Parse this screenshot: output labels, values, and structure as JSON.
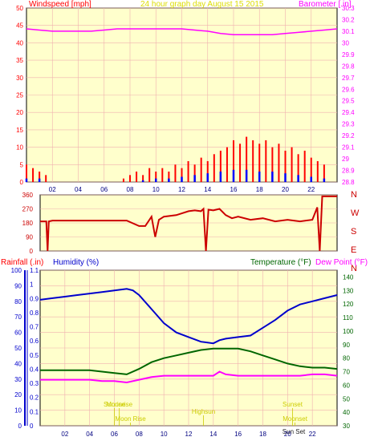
{
  "chart_data": [
    {
      "type": "line",
      "title": "24 hour graph day   August 15 2015",
      "left_axis_label": "Windspeed [mph]",
      "right_axis_label": "Barometer [.in]",
      "x": {
        "ticks": [
          2,
          4,
          6,
          8,
          10,
          12,
          14,
          16,
          18,
          20,
          22
        ],
        "tick_labels": [
          "02",
          "04",
          "06",
          "08",
          "10",
          "12",
          "14",
          "16",
          "18",
          "20",
          "22"
        ],
        "range": [
          0,
          24
        ]
      },
      "ylim_left": [
        0,
        50
      ],
      "yticks_left": [
        0,
        5,
        10,
        15,
        20,
        25,
        30,
        35,
        40,
        45,
        50
      ],
      "ylim_right": [
        28.8,
        30.3
      ],
      "yticks_right": [
        28.8,
        28.9,
        29,
        29.1,
        29.2,
        29.3,
        29.4,
        29.5,
        29.6,
        29.7,
        29.8,
        29.9,
        30,
        30.1,
        30.2,
        30.3
      ],
      "grid": true,
      "series": [
        {
          "name": "Barometer",
          "color": "#ff00ff",
          "axis": "right",
          "x": [
            0,
            1,
            2,
            3,
            4,
            5,
            6,
            7,
            8,
            9,
            10,
            11,
            12,
            13,
            14,
            15,
            16,
            17,
            18,
            19,
            20,
            21,
            22,
            23,
            24
          ],
          "values": [
            30.12,
            30.11,
            30.1,
            30.1,
            30.1,
            30.1,
            30.11,
            30.12,
            30.12,
            30.12,
            30.12,
            30.12,
            30.12,
            30.11,
            30.1,
            30.08,
            30.07,
            30.07,
            30.07,
            30.07,
            30.08,
            30.09,
            30.1,
            30.11,
            30.12
          ]
        },
        {
          "name": "Wind gust",
          "color": "#ff0000",
          "axis": "left",
          "x": [
            0,
            0.5,
            1,
            1.5,
            2,
            3,
            4,
            5,
            6,
            7,
            7.5,
            8,
            8.5,
            9,
            9.5,
            10,
            10.5,
            11,
            11.5,
            12,
            12.5,
            13,
            13.5,
            14,
            14.5,
            15,
            15.5,
            16,
            16.5,
            17,
            17.5,
            18,
            18.5,
            19,
            19.5,
            20,
            20.5,
            21,
            21.5,
            22,
            22.5,
            23
          ],
          "values": [
            5,
            4,
            3,
            2,
            0,
            0,
            0,
            0,
            0,
            0,
            1,
            2,
            3,
            2,
            4,
            3,
            4,
            3,
            5,
            4,
            6,
            5,
            7,
            6,
            8,
            9,
            10,
            12,
            11,
            13,
            12,
            11,
            12,
            10,
            11,
            9,
            10,
            8,
            9,
            7,
            6,
            5
          ]
        },
        {
          "name": "Wind average",
          "color": "#0000ff",
          "axis": "left",
          "x": [
            0,
            1,
            2,
            6,
            8,
            9,
            10,
            11,
            12,
            13,
            14,
            15,
            16,
            17,
            18,
            19,
            20,
            21,
            22,
            23
          ],
          "values": [
            1,
            1,
            0,
            0,
            0,
            0.5,
            1,
            1,
            1.5,
            2,
            2.5,
            3,
            3.5,
            3.5,
            3,
            3,
            2.5,
            2,
            1.5,
            1
          ]
        }
      ]
    },
    {
      "type": "line",
      "title": "Wind direction",
      "right_labels": [
        "N",
        "W",
        "S",
        "E",
        "N"
      ],
      "ylim": [
        0,
        360
      ],
      "yticks": [
        0,
        90,
        180,
        270,
        360
      ],
      "x_range": [
        0,
        24
      ],
      "series": [
        {
          "name": "Wind direction",
          "color": "#cc0000",
          "x": [
            0,
            0.3,
            0.5,
            0.6,
            0.7,
            1,
            2,
            3,
            4,
            5,
            6,
            7,
            8,
            8.5,
            9,
            9.3,
            9.6,
            10,
            11,
            12,
            12.5,
            13,
            13.2,
            13.4,
            13.6,
            14,
            14.5,
            15,
            15.5,
            16,
            17,
            18,
            19,
            20,
            21,
            22,
            22.4,
            22.6,
            22.8,
            23,
            23.5,
            24
          ],
          "values": [
            190,
            190,
            190,
            0,
            190,
            195,
            195,
            195,
            195,
            195,
            195,
            195,
            160,
            160,
            220,
            90,
            200,
            220,
            230,
            255,
            260,
            255,
            270,
            0,
            265,
            260,
            270,
            230,
            210,
            220,
            200,
            210,
            190,
            200,
            190,
            200,
            280,
            0,
            350,
            350,
            350,
            350
          ]
        }
      ]
    },
    {
      "type": "line",
      "labels": {
        "rainfall": "Rainfall (.in)",
        "humidity": "Humidity (%)",
        "temperature": "Temperature (°F)",
        "dew_point": "Dew Point (°F)"
      },
      "x": {
        "ticks": [
          2,
          4,
          6,
          8,
          10,
          12,
          14,
          16,
          18,
          20,
          22
        ],
        "tick_labels": [
          "02",
          "04",
          "06",
          "08",
          "10",
          "12",
          "14",
          "16",
          "18",
          "20",
          "22"
        ],
        "range": [
          0,
          24
        ]
      },
      "ylim_humidity": [
        0,
        100
      ],
      "yticks_humidity": [
        0,
        10,
        20,
        30,
        40,
        50,
        60,
        70,
        80,
        90,
        100
      ],
      "ylim_rain": [
        0,
        1.1
      ],
      "yticks_rain": [
        0,
        0.1,
        0.2,
        0.3,
        0.4,
        0.5,
        0.6,
        0.7,
        0.8,
        0.9,
        1,
        1.1
      ],
      "ylim_temp": [
        30,
        145
      ],
      "yticks_temp": [
        30,
        40,
        50,
        60,
        70,
        80,
        90,
        100,
        110,
        120,
        130,
        140
      ],
      "grid": true,
      "series": [
        {
          "name": "Humidity",
          "color": "#0000cc",
          "axis": "humidity",
          "x": [
            0,
            1,
            2,
            3,
            4,
            5,
            6,
            7,
            7.5,
            8,
            9,
            10,
            11,
            12,
            13,
            14,
            14.5,
            15,
            16,
            17,
            18,
            19,
            20,
            21,
            22,
            23,
            24
          ],
          "values": [
            81,
            82,
            83,
            84,
            85,
            86,
            87,
            88,
            87,
            84,
            75,
            66,
            60,
            57,
            54,
            53,
            55,
            56,
            57,
            58,
            63,
            68,
            74,
            78,
            80,
            82,
            84
          ]
        },
        {
          "name": "Temperature",
          "color": "#006600",
          "axis": "temp",
          "x": [
            0,
            2,
            4,
            5,
            6,
            7,
            8,
            9,
            10,
            11,
            12,
            13,
            14,
            15,
            16,
            17,
            18,
            19,
            20,
            21,
            22,
            23,
            24
          ],
          "values": [
            71,
            71,
            71,
            70,
            69,
            68,
            72,
            77,
            80,
            82,
            84,
            86,
            87,
            87,
            87,
            85,
            82,
            79,
            76,
            74,
            73,
            73,
            72
          ]
        },
        {
          "name": "Dew Point",
          "color": "#ff00ff",
          "axis": "temp",
          "x": [
            0,
            2,
            4,
            5,
            6,
            7,
            8,
            9,
            10,
            11,
            12,
            13,
            14,
            14.5,
            15,
            16,
            17,
            18,
            19,
            20,
            21,
            22,
            23,
            24
          ],
          "values": [
            64,
            64,
            64,
            63,
            63,
            62,
            64,
            66,
            67,
            67,
            67,
            67,
            67,
            70,
            68,
            67,
            67,
            67,
            67,
            67,
            67,
            68,
            68,
            67
          ]
        }
      ],
      "annotations": [
        {
          "text": "Sunrise",
          "hour": 6,
          "row": "upper",
          "color": "#cccc00"
        },
        {
          "text": "Moonrise",
          "hour": 6.4,
          "row": "upper",
          "color": "#cccc00"
        },
        {
          "text": "Moon Rise",
          "hour": 7.3,
          "row": "lower",
          "color": "#cccc00"
        },
        {
          "text": "Highsun",
          "hour": 13.2,
          "row": "middle",
          "color": "#cccc00"
        },
        {
          "text": "Sunset",
          "hour": 20.4,
          "row": "upper",
          "color": "#cccc00"
        },
        {
          "text": "Moonset",
          "hour": 20.6,
          "row": "lower",
          "color": "#cccc00"
        },
        {
          "text": "Sun Set",
          "hour": 20.5,
          "row": "bottom",
          "color": "#222222"
        }
      ]
    }
  ]
}
